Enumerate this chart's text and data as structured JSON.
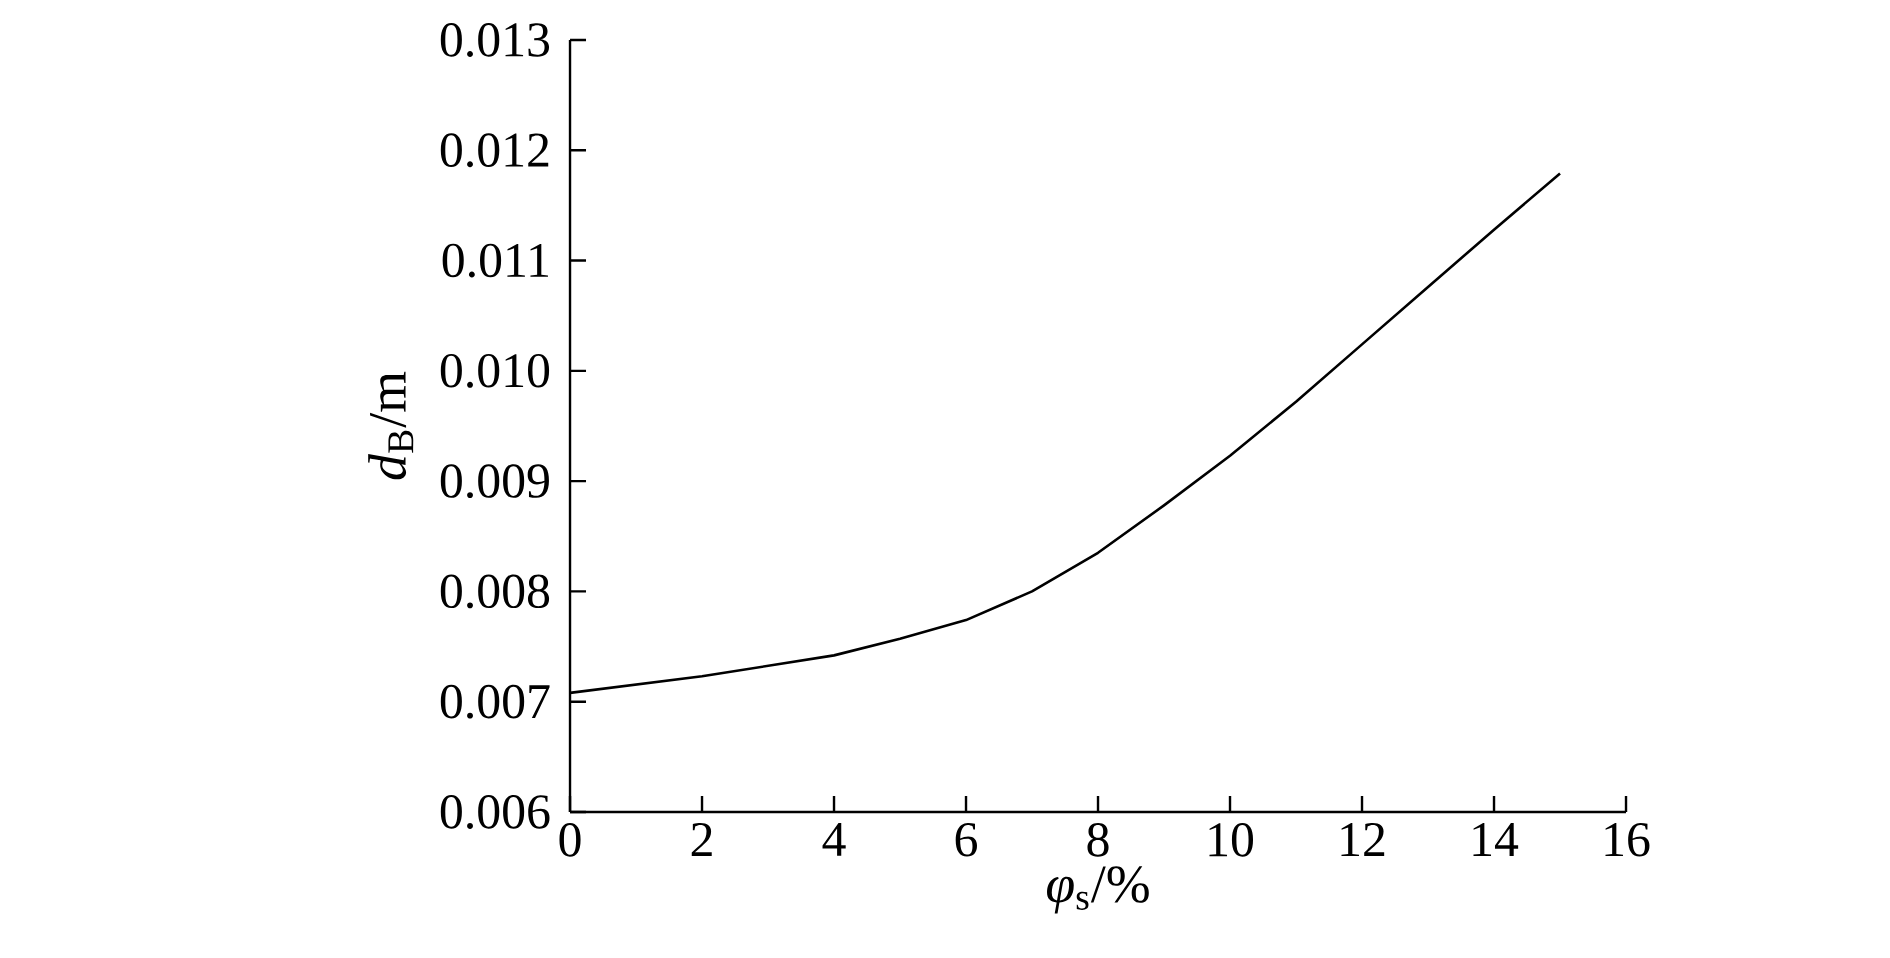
{
  "chart_data": {
    "type": "line",
    "xlabel": "*φ*$_{s}$/%",
    "ylabel": "*d*$_{B}$/m",
    "x": [
      0,
      2,
      4,
      5,
      6,
      7,
      8,
      9,
      10,
      11,
      12,
      13,
      14,
      15
    ],
    "series": [
      {
        "color": "#000000",
        "values": [
          0.00708,
          0.00723,
          0.00742,
          0.00757,
          0.00774,
          0.008,
          0.00835,
          0.00878,
          0.00923,
          0.00972,
          0.01024,
          0.01076,
          0.01128,
          0.01179
        ]
      }
    ],
    "xlim": [
      0,
      16
    ],
    "ylim": [
      0.006,
      0.013
    ],
    "xticks": [
      0,
      2,
      4,
      6,
      8,
      10,
      12,
      14,
      16
    ],
    "yticks": [
      0.006,
      0.007,
      0.008,
      0.009,
      {
        "value": 0.01,
        "label": "0.010"
      },
      0.011,
      0.012,
      0.013
    ],
    "grid": false,
    "marker": "none",
    "line_style": "solid"
  }
}
